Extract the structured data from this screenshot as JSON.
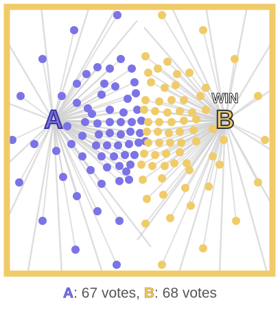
{
  "colors": {
    "frame": "#f0cb6a",
    "voter_a": "#7b73e6",
    "voter_b": "#f0cb6a",
    "line": "#d0d0d0",
    "label_a_fill": "#7b73e6",
    "label_a_stroke": "#3a349a",
    "label_b_fill": "#f0cb6a",
    "label_b_stroke": "#333333"
  },
  "candidates": {
    "a": {
      "label": "A"
    },
    "b": {
      "label": "B",
      "badge": "WIN"
    }
  },
  "results": {
    "a_name": "A",
    "a_text": ": 67 votes, ",
    "b_name": "B",
    "b_text": ": 68 votes"
  }
}
